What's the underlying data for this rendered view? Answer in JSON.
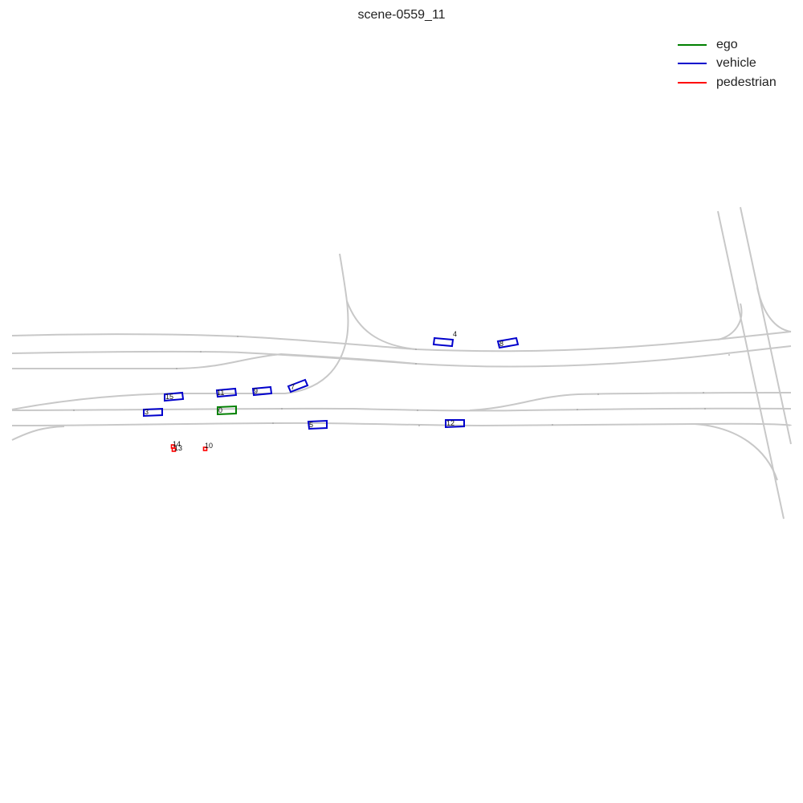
{
  "title": "scene-0559_11",
  "legend": [
    {
      "label": "ego",
      "color": "#008000"
    },
    {
      "label": "vehicle",
      "color": "#0000cc"
    },
    {
      "label": "pedestrian",
      "color": "#ff0000"
    }
  ],
  "agents": [
    {
      "id": "0",
      "type": "ego"
    },
    {
      "id": "3",
      "type": "vehicle"
    },
    {
      "id": "4",
      "type": "vehicle"
    },
    {
      "id": "5",
      "type": "vehicle"
    },
    {
      "id": "7",
      "type": "vehicle"
    },
    {
      "id": "8",
      "type": "vehicle"
    },
    {
      "id": "9",
      "type": "vehicle"
    },
    {
      "id": "11",
      "type": "vehicle"
    },
    {
      "id": "12",
      "type": "vehicle"
    },
    {
      "id": "15",
      "type": "vehicle"
    },
    {
      "id": "10",
      "type": "pedestrian"
    },
    {
      "id": "13",
      "type": "pedestrian"
    },
    {
      "id": "14",
      "type": "pedestrian"
    }
  ]
}
